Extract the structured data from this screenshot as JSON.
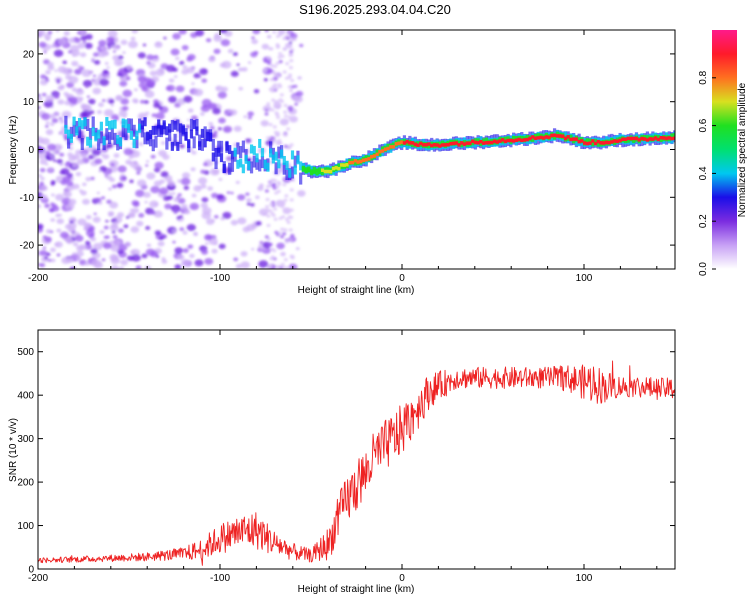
{
  "title": "S196.2025.293.04.04.C20",
  "chart_data": [
    {
      "type": "heatmap",
      "xlabel": "Height of straight line (km)",
      "ylabel": "Frequency (Hz)",
      "xlim": [
        -200,
        150
      ],
      "ylim": [
        -25,
        25
      ],
      "xticks": [
        -200,
        -100,
        0,
        100
      ],
      "yticks": [
        -20,
        -10,
        0,
        10,
        20
      ],
      "colorbar": {
        "label": "Normalized spectral amplitude",
        "range": [
          0,
          1
        ],
        "ticks": [
          "0.0",
          "0.2",
          "0.4",
          "0.6",
          "0.8"
        ],
        "colormap": [
          "#ffffff",
          "#c7a0f5",
          "#7b2ce0",
          "#1a0ee8",
          "#00c8f0",
          "#00e070",
          "#20e020",
          "#d8e020",
          "#ff7020",
          "#ff1a2a",
          "#ff1a8a"
        ]
      },
      "ridge": {
        "x": [
          -175,
          -150,
          -125,
          -110,
          -100,
          -90,
          -80,
          -70,
          -60,
          -50,
          -40,
          -30,
          -20,
          -10,
          0,
          10,
          20,
          40,
          60,
          75,
          85,
          90,
          100,
          110,
          120,
          150
        ],
        "freq": [
          3.5,
          3.5,
          3.0,
          3.0,
          -1.5,
          -2.0,
          -1.0,
          -2.0,
          -3.5,
          -4.5,
          -4.5,
          -3.0,
          -2.0,
          0.0,
          1.5,
          1.0,
          1.0,
          1.5,
          2.0,
          2.5,
          3.0,
          2.5,
          1.5,
          1.5,
          2.0,
          2.5
        ],
        "amplitude": [
          0.4,
          0.4,
          0.35,
          0.35,
          0.35,
          0.4,
          0.45,
          0.5,
          0.55,
          0.6,
          0.7,
          0.75,
          0.8,
          0.8,
          0.85,
          0.9,
          0.9,
          0.95,
          0.95,
          0.95,
          0.95,
          0.95,
          0.95,
          0.95,
          0.95,
          0.95
        ]
      },
      "noise_region_km": [
        -200,
        -55
      ]
    },
    {
      "type": "line",
      "xlabel": "Height of straight line (km)",
      "ylabel": "SNR (10 * v/v)",
      "xlim": [
        -200,
        150
      ],
      "ylim": [
        0,
        550
      ],
      "xticks": [
        -200,
        -100,
        0,
        100
      ],
      "yticks": [
        0,
        100,
        200,
        300,
        400,
        500
      ],
      "color": "#ee2222",
      "series": [
        {
          "name": "SNR",
          "x": [
            -200,
            -180,
            -160,
            -140,
            -120,
            -110,
            -100,
            -90,
            -80,
            -70,
            -60,
            -50,
            -40,
            -35,
            -30,
            -25,
            -20,
            -15,
            -10,
            -5,
            0,
            5,
            10,
            15,
            20,
            25,
            30,
            40,
            50,
            60,
            70,
            80,
            90,
            100,
            105,
            110,
            120,
            130,
            140,
            150
          ],
          "values": [
            20,
            22,
            25,
            28,
            35,
            45,
            70,
            85,
            90,
            60,
            40,
            30,
            60,
            120,
            160,
            190,
            220,
            260,
            280,
            300,
            320,
            350,
            380,
            410,
            420,
            430,
            440,
            440,
            440,
            440,
            440,
            440,
            440,
            430,
            430,
            420,
            420,
            420,
            415,
            415
          ],
          "jitter": [
            6,
            7,
            8,
            10,
            15,
            25,
            35,
            40,
            45,
            30,
            20,
            15,
            40,
            50,
            60,
            60,
            60,
            60,
            60,
            60,
            60,
            55,
            50,
            40,
            35,
            30,
            25,
            25,
            25,
            25,
            25,
            25,
            30,
            40,
            50,
            40,
            25,
            25,
            25,
            25
          ]
        }
      ]
    }
  ]
}
